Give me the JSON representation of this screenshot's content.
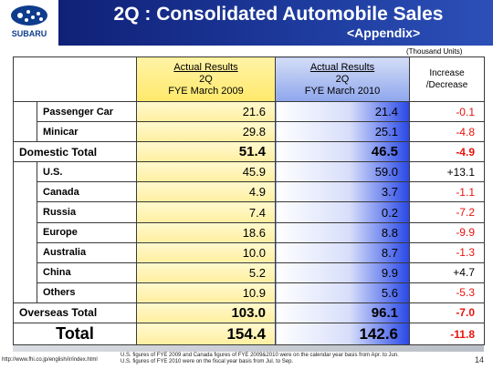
{
  "logo": {
    "text": "SUBARU",
    "brand_color": "#0f3c8c"
  },
  "header": {
    "title": "2Q : Consolidated Automobile Sales",
    "subtitle": "<Appendix>",
    "colors": {
      "gradient_start": "#0d1a6e",
      "gradient_end": "#2c50b8"
    }
  },
  "units": "(Thousand Units)",
  "table": {
    "columns": [
      {
        "line1": "Actual Results",
        "line2": "2Q",
        "line3": "FYE March 2009"
      },
      {
        "line1": "Actual Results",
        "line2": "2Q",
        "line3": "FYE March 2010"
      },
      {
        "line1": "Increase",
        "line2": "/Decrease"
      }
    ],
    "rows": [
      {
        "label": "Passenger Car",
        "v2009": "21.6",
        "v2010": "21.4",
        "change": "-0.1"
      },
      {
        "label": "Minicar",
        "v2009": "29.8",
        "v2010": "25.1",
        "change": "-4.8"
      },
      {
        "label": "Domestic Total",
        "v2009": "51.4",
        "v2010": "46.5",
        "change": "-4.9"
      },
      {
        "label": "U.S.",
        "v2009": "45.9",
        "v2010": "59.0",
        "change": "+13.1"
      },
      {
        "label": "Canada",
        "v2009": "4.9",
        "v2010": "3.7",
        "change": "-1.1"
      },
      {
        "label": "Russia",
        "v2009": "7.4",
        "v2010": "0.2",
        "change": "-7.2"
      },
      {
        "label": "Europe",
        "v2009": "18.6",
        "v2010": "8.8",
        "change": "-9.9"
      },
      {
        "label": "Australia",
        "v2009": "10.0",
        "v2010": "8.7",
        "change": "-1.3"
      },
      {
        "label": "China",
        "v2009": "5.2",
        "v2010": "9.9",
        "change": "+4.7"
      },
      {
        "label": "Others",
        "v2009": "10.9",
        "v2010": "5.6",
        "change": "-5.3"
      },
      {
        "label": "Overseas Total",
        "v2009": "103.0",
        "v2010": "96.1",
        "change": "-7.0"
      },
      {
        "label": "Total",
        "v2009": "154.4",
        "v2010": "142.6",
        "change": "-11.8"
      }
    ],
    "colors": {
      "negative": "#e8130f",
      "positive": "#000000"
    }
  },
  "footer": {
    "url": "http://www.fhi.co.jp/english/ir/index.html",
    "note1": "U.S. figures of FYE 2009 and Canada figures of FYE 2009&2010 were on the calendar year basis from Apr. to Jun.",
    "note2": "U.S. figures of FYE 2010 were on the fiscal year basis from Jul. to Sep.",
    "page": "14"
  }
}
